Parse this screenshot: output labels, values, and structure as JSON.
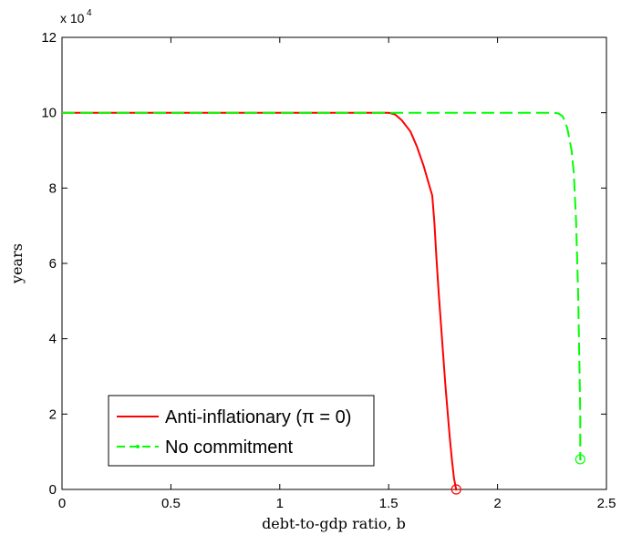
{
  "chart_data": {
    "type": "line",
    "xlabel": "debt-to-gdp ratio, b",
    "ylabel": "years",
    "xlim": [
      0,
      2.5
    ],
    "ylim": [
      0,
      120000
    ],
    "y_exponent_label": "x 10^4",
    "x_ticks": [
      0,
      0.5,
      1,
      1.5,
      2,
      2.5
    ],
    "x_tick_labels": [
      "0",
      "0.5",
      "1",
      "1.5",
      "2",
      "2.5"
    ],
    "y_ticks": [
      0,
      20000,
      40000,
      60000,
      80000,
      100000,
      120000
    ],
    "y_tick_labels": [
      "0",
      "2",
      "4",
      "6",
      "8",
      "10",
      "12"
    ],
    "grid": false,
    "legend_position": "bottom-left",
    "series": [
      {
        "name": "Anti-inflationary (π = 0)",
        "color": "#ff0000",
        "style": "solid",
        "end_marker": "circle",
        "x": [
          0,
          1.5,
          1.53,
          1.56,
          1.6,
          1.63,
          1.66,
          1.68,
          1.7,
          1.71,
          1.72,
          1.73,
          1.74,
          1.75,
          1.76,
          1.77,
          1.78,
          1.79,
          1.8,
          1.81
        ],
        "y": [
          100000,
          100000,
          99500,
          98000,
          95000,
          91000,
          86000,
          82000,
          78000,
          71000,
          61000,
          52000,
          44000,
          36000,
          28000,
          21000,
          14000,
          8000,
          3000,
          0
        ]
      },
      {
        "name": "No commitment",
        "color": "#00ff00",
        "style": "dashed",
        "end_marker": "circle",
        "x": [
          0,
          2.26,
          2.28,
          2.3,
          2.32,
          2.34,
          2.35,
          2.36,
          2.37,
          2.38,
          2.38
        ],
        "y": [
          100000,
          100000,
          99800,
          99000,
          96000,
          90000,
          84000,
          72000,
          52000,
          20000,
          8000
        ]
      }
    ]
  }
}
